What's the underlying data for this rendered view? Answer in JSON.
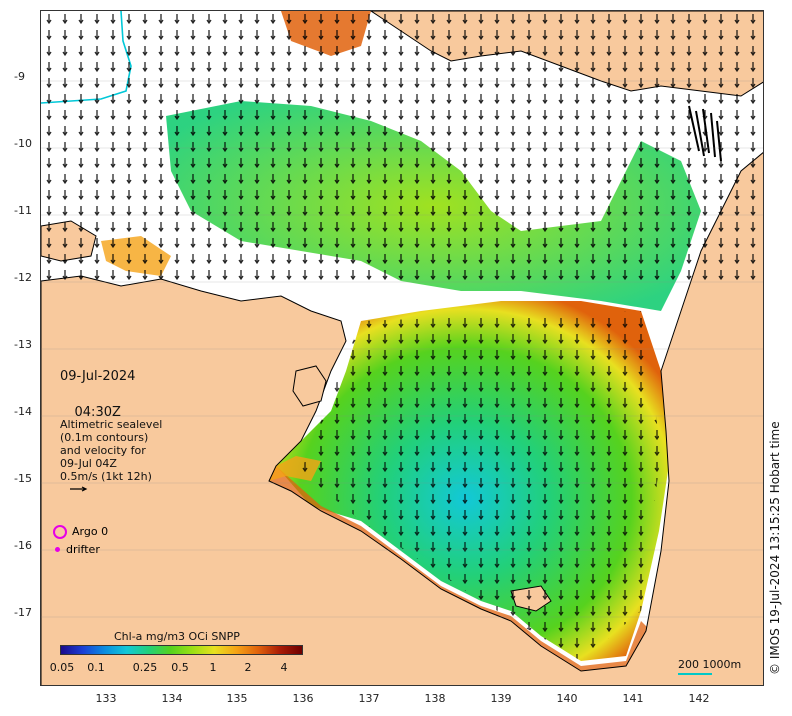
{
  "map": {
    "date": "09-Jul-2024",
    "time": "04:30Z",
    "legend_text": "Altimetric sealevel\n(0.1m contours)\nand velocity for\n09-Jul 04Z\n0.5m/s (1kt 12h)",
    "argo_label": "Argo 0",
    "drifter_label": "drifter",
    "colorbar_title": "Chl-a mg/m3 OCi SNPP",
    "colorbar_ticks": [
      "0.05",
      "0.1",
      "0.25",
      "0.5",
      "1",
      "2",
      "4"
    ],
    "scale_label": "200  1000m",
    "credit": "© IMOS 19-Jul-2024 13:15:25 Hobart time",
    "lat_ticks": [
      "-9",
      "-10",
      "-11",
      "-12",
      "-13",
      "-14",
      "-15",
      "-16",
      "-17"
    ],
    "lon_ticks": [
      "133",
      "134",
      "135",
      "136",
      "137",
      "138",
      "139",
      "140",
      "141",
      "142"
    ],
    "colors": {
      "land": "#f8c99d",
      "ocean_gap": "#ffffff",
      "arrow": "#000000",
      "argo": "#e600e6",
      "bathy_200": "#00c8c8"
    },
    "colormap": [
      "#1a0a8c",
      "#1a3fd6",
      "#0a8de0",
      "#12c8d8",
      "#22d07a",
      "#56d21e",
      "#9be014",
      "#e8e020",
      "#f5a316",
      "#e0620c",
      "#a91c08",
      "#6e0000"
    ]
  }
}
